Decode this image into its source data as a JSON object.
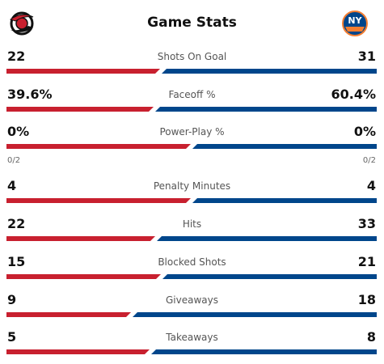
{
  "header": {
    "title": "Game Stats",
    "home_logo_icon": "hurricanes-logo-icon",
    "away_logo_icon": "islanders-logo-icon"
  },
  "colors": {
    "home": "#c8202f",
    "away": "#00468b"
  },
  "stats": [
    {
      "label": "Shots On Goal",
      "home": "22",
      "away": "31",
      "home_share": 0.415
    },
    {
      "label": "Faceoff %",
      "home": "39.6%",
      "away": "60.4%",
      "home_share": 0.396
    },
    {
      "label": "Power-Play %",
      "home": "0%",
      "away": "0%",
      "home_share": 0.5,
      "home_sub": "0/2",
      "away_sub": "0/2"
    },
    {
      "label": "Penalty Minutes",
      "home": "4",
      "away": "4",
      "home_share": 0.5
    },
    {
      "label": "Hits",
      "home": "22",
      "away": "33",
      "home_share": 0.4
    },
    {
      "label": "Blocked Shots",
      "home": "15",
      "away": "21",
      "home_share": 0.417
    },
    {
      "label": "Giveaways",
      "home": "9",
      "away": "18",
      "home_share": 0.333
    },
    {
      "label": "Takeaways",
      "home": "5",
      "away": "8",
      "home_share": 0.385
    }
  ]
}
